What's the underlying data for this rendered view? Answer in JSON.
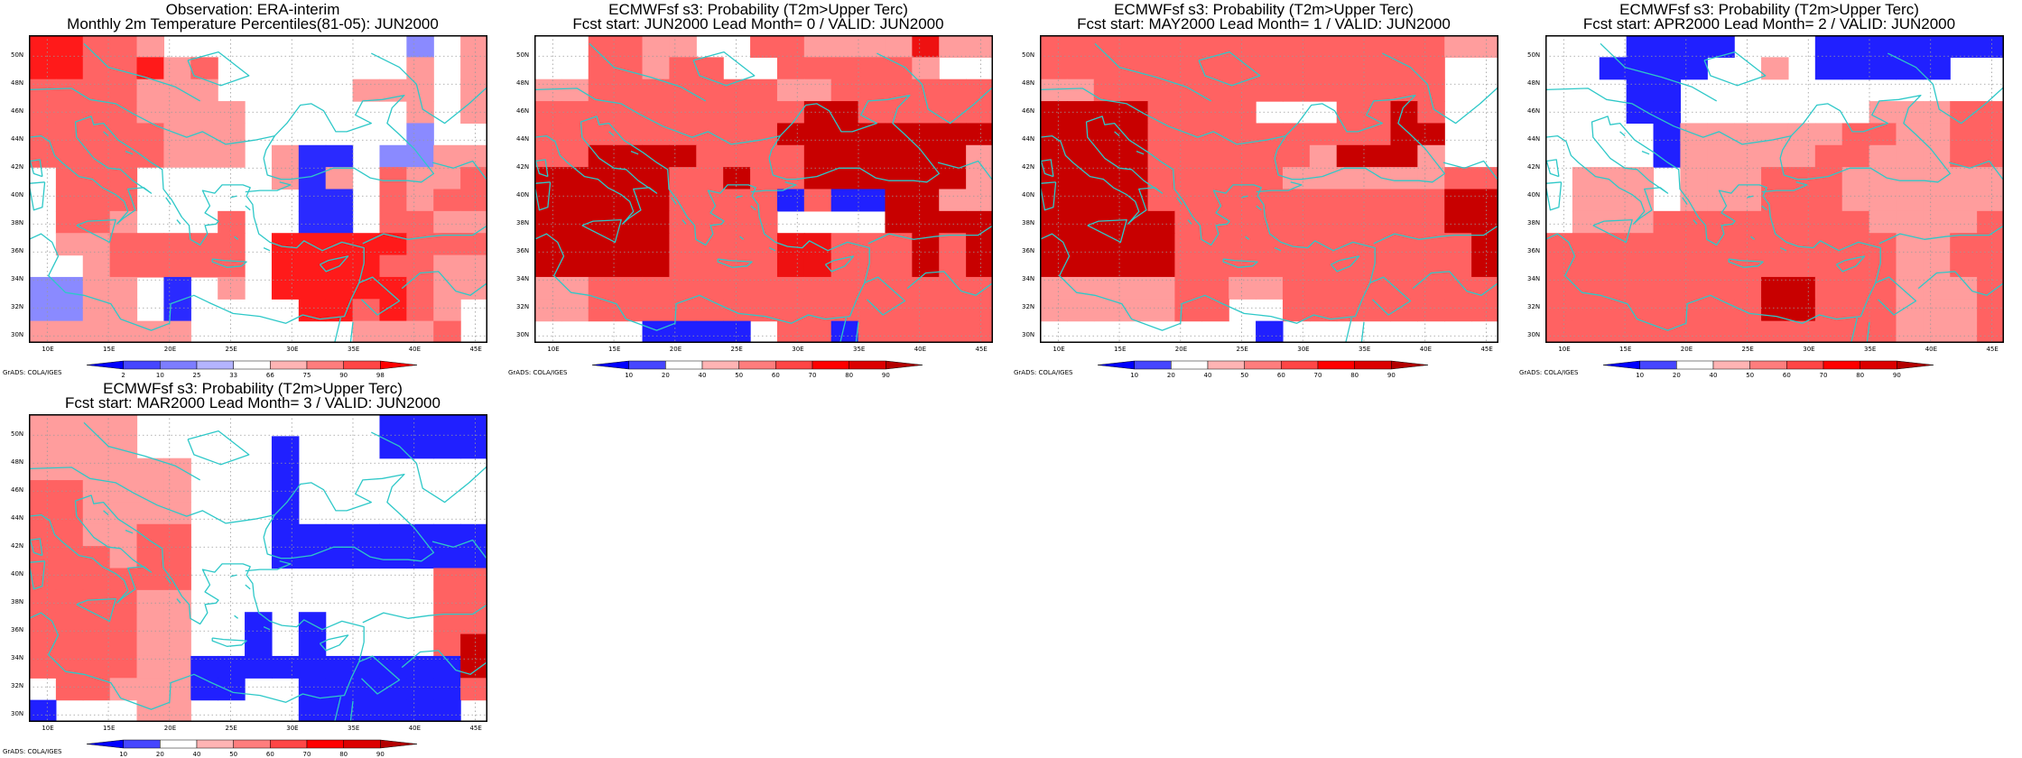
{
  "footer_text": "GrADS: COLA/IGES",
  "x_ticks": [
    "10E",
    "15E",
    "20E",
    "25E",
    "30E",
    "35E",
    "40E",
    "45E"
  ],
  "y_ticks": [
    "30N",
    "32N",
    "34N",
    "36N",
    "38N",
    "40N",
    "42N",
    "44N",
    "46N",
    "48N",
    "50N"
  ],
  "colors": {
    "coast": "#2ec8c8",
    "grid": "#9a9a9a",
    "frame": "#000000"
  },
  "colorbar_obs": {
    "labels": [
      "2",
      "10",
      "25",
      "33",
      "66",
      "75",
      "90",
      "98"
    ],
    "colors": [
      "#0000ff",
      "#4646ff",
      "#7d7dff",
      "#b4b4ff",
      "#ffffff",
      "#ffb4b4",
      "#ff7d7d",
      "#ff4646",
      "#ff0000"
    ]
  },
  "colorbar_prob": {
    "labels": [
      "10",
      "20",
      "40",
      "50",
      "60",
      "70",
      "80",
      "90"
    ],
    "colors": [
      "#0000ff",
      "#4646ff",
      "#ffffff",
      "#ffb4b4",
      "#ff7d7d",
      "#ff4646",
      "#ff0000",
      "#dc0000",
      "#b40000"
    ]
  },
  "panels": [
    {
      "title1": "Observation: ERA-interim",
      "title2": "Monthly 2m Temperature Percentiles(81-05): JUN2000",
      "colorbar": "obs"
    },
    {
      "title1": "ECMWFsf s3: Probability (T2m>Upper Terc)",
      "title2": "Fcst start: JUN2000   Lead Month= 0 / VALID: JUN2000",
      "colorbar": "prob"
    },
    {
      "title1": "ECMWFsf s3: Probability (T2m>Upper Terc)",
      "title2": "Fcst start: MAY2000   Lead Month= 1 / VALID: JUN2000",
      "colorbar": "prob"
    },
    {
      "title1": "ECMWFsf s3: Probability (T2m>Upper Terc)",
      "title2": "Fcst start: APR2000   Lead Month= 2 / VALID: JUN2000",
      "colorbar": "prob"
    },
    {
      "title1": "ECMWFsf s3: Probability (T2m>Upper Terc)",
      "title2": "Fcst start: MAR2000   Lead Month= 3 / VALID: JUN2000",
      "colorbar": "prob"
    }
  ],
  "chart_data": [
    {
      "type": "heatmap",
      "xlim": [
        8.5,
        46
      ],
      "ylim": [
        29.5,
        51.5
      ],
      "lon_start": 8.5,
      "lat_start": 29.5,
      "cell_deg": 2.5,
      "grid": [
        "RRPPLWWWWWWWWWBWL",
        "RRPPRLPWWWWWWWLWL",
        "PPPPLLLWWWWWLLLWL",
        "PPPPLLLLWWWWWWLWL",
        "PPPPPLLLWWWWWWBWW",
        "PPPPPLLLWLMMWBBLL",
        "WPPPWWWWWLMLWPLLP",
        "WPPPWWWWWWMMWPLPP",
        "WPPLWWWPWWMMWPPLL",
        "WLLPPPPPWRRRRRPPP",
        "WWLPPPPPWRRRRPPLL",
        "BBLLWMWLWRRRRRPLL",
        "BBLLWMWWWWRRPRPLW",
        "LLLLLLWWWWWWLLLPW"
      ]
    },
    {
      "type": "heatmap",
      "xlim": [
        8.5,
        46
      ],
      "ylim": [
        29.5,
        51.5
      ],
      "lon_start": 8.5,
      "lat_start": 29.5,
      "cell_deg": 2.5,
      "grid": [
        "WWPPLLWWPPLLLLRLL",
        "WWPPLPPWWPPPPPLWW",
        "LLPPPPPPPLLPPPPPP",
        "PPPPPPPPPPDDPPPPP",
        "PPPPPPPPPDDDDDDDD",
        "PPDDDDPPPPDDDDDDL",
        "DDDDDPPDPPDDDDDDL",
        "DDDDDPPPPBPBBDDLL",
        "DDDDDPPPPWWWWDDDD",
        "DDDDDPPPPRRPPPDPD",
        "DDDDDPPPPRRPPPDPD",
        "LLPPPPPPPPPPPPPPP",
        "LLPPPPPPPPPPPPPPP",
        "WWWWBBBBWPPBPPPPP"
      ]
    },
    {
      "type": "heatmap",
      "xlim": [
        8.5,
        46
      ],
      "ylim": [
        29.5,
        51.5
      ],
      "lon_start": 8.5,
      "lat_start": 29.5,
      "cell_deg": 2.5,
      "grid": [
        "PPPPPPPPPPPPPPPLL",
        "PPPPPPPPPPPPPPPWW",
        "LLPPPPPPPPPPPPPWW",
        "DDDDPPPPWWWPPDPWW",
        "DDDDPPPPPPPPPDDWW",
        "DDDDPPPPPPLDDDLWW",
        "DDDDPPPPPLLLLLLPP",
        "DDDDPPPPPPPPPPPDD",
        "DDDDDPPPPPPPPPPDD",
        "DDDDDPPPPPPPPPPPD",
        "DDDDDPPPPPPPPPPPD",
        "LLLLLPPLLPPPPPPPP",
        "LLLLLPPWWPPPPPPPP",
        "WWWWWWWWBWWWWWWWW"
      ]
    },
    {
      "type": "heatmap",
      "xlim": [
        8.5,
        46
      ],
      "ylim": [
        29.5,
        51.5
      ],
      "lon_start": 8.5,
      "lat_start": 29.5,
      "cell_deg": 2.5,
      "grid": [
        "WWWBBBBWWWBBBBBBB",
        "WWBBBBWWLWBBBBBWW",
        "WWWBBWWWWWWWWWWWW",
        "WWWBBWWWWWWWLLLPP",
        "WWWWBLLLLLLPPLLPP",
        "WWWWBLLLLLPPLLLPP",
        "WLLLWLLLPPPLLLLLL",
        "WLLLWLLLPPPLLLLLL",
        "WLLLPPPPPPPPLLLLP",
        "PPPPPPPPPPPPPLLPP",
        "PPPPPPPPPPPPPLLPP",
        "PPPPPPPPDDPPPLLLP",
        "PPPPPPPPDDPPPLLLP",
        "PPPPPPPPPPPPPLLLP"
      ]
    },
    {
      "type": "heatmap",
      "xlim": [
        8.5,
        46
      ],
      "ylim": [
        29.5,
        51.5
      ],
      "lon_start": 8.5,
      "lat_start": 29.5,
      "cell_deg": 2.5,
      "grid": [
        "LLLLWWWWWWWWWBBBB",
        "LLLLWWWWWBWWWBBBB",
        "LLLLLLWWWBWWWWWWW",
        "PPLLLLWWWBWWWWWWW",
        "PPLLLLWWWBWWWWWWW",
        "PPLLPPWWWBBBBBBBB",
        "PPPLPPWWWBBBBBBBB",
        "PPPPPPWWWWWWWWWPP",
        "PPPPLLWWWWWWWWWPP",
        "PPPPLLWWBWBWWWWPP",
        "PPPPLLWWBWBWWWWPD",
        "PPPPLLBBBBBBBBBBD",
        "WPPLLLBBWWBBBBBBP",
        "BWWWLLWWWWBBBBBBW"
      ]
    }
  ]
}
